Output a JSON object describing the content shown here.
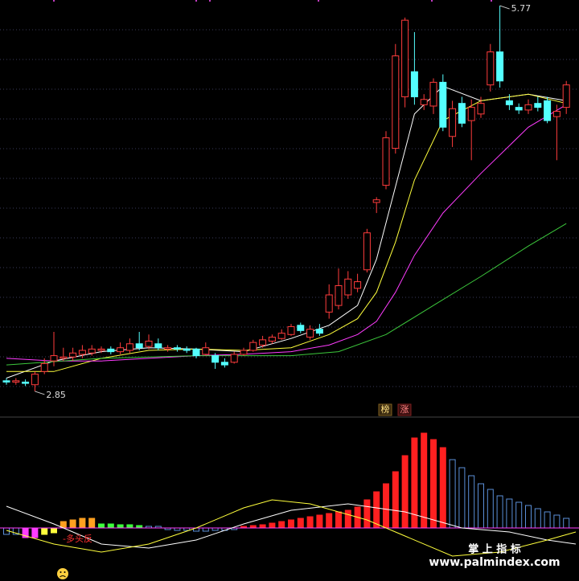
{
  "chart_data": [
    {
      "type": "candlestick",
      "up_color": "#ff3c3c",
      "down_color": "#54ffff",
      "ylim": [
        2.655,
        5.813
      ],
      "open": [
        2.93,
        2.92,
        2.92,
        2.9,
        3.0,
        3.08,
        3.1,
        3.11,
        3.13,
        3.14,
        3.16,
        3.17,
        3.15,
        3.16,
        3.21,
        3.19,
        3.21,
        3.17,
        3.18,
        3.17,
        3.17,
        3.13,
        3.12,
        3.07,
        3.07,
        3.13,
        3.16,
        3.2,
        3.23,
        3.25,
        3.28,
        3.35,
        3.26,
        3.32,
        3.45,
        3.5,
        3.58,
        3.63,
        3.77,
        4.28,
        4.41,
        4.69,
        5.08,
        5.27,
        5.02,
        5.01,
        5.19,
        4.78,
        5.03,
        4.9,
        4.95,
        5.17,
        5.42,
        5.05,
        5.0,
        4.98,
        5.03,
        5.05,
        4.93,
        5.0
      ],
      "high": [
        2.95,
        2.95,
        2.94,
        3.0,
        3.1,
        3.3,
        3.18,
        3.18,
        3.2,
        3.2,
        3.19,
        3.19,
        3.22,
        3.25,
        3.3,
        3.28,
        3.25,
        3.2,
        3.2,
        3.19,
        3.18,
        3.22,
        3.14,
        3.1,
        3.15,
        3.18,
        3.24,
        3.27,
        3.28,
        3.32,
        3.36,
        3.37,
        3.35,
        3.36,
        3.66,
        3.78,
        3.76,
        3.74,
        4.08,
        4.32,
        4.82,
        5.48,
        5.68,
        5.57,
        5.1,
        5.22,
        5.25,
        5.05,
        5.08,
        5.06,
        5.08,
        5.48,
        5.77,
        5.1,
        5.03,
        5.06,
        5.08,
        5.08,
        5.02,
        5.2
      ],
      "low": [
        2.9,
        2.9,
        2.89,
        2.85,
        2.98,
        3.04,
        3.08,
        3.08,
        3.1,
        3.12,
        3.14,
        3.13,
        3.13,
        3.14,
        3.16,
        3.17,
        3.16,
        3.15,
        3.15,
        3.14,
        3.1,
        3.12,
        3.02,
        3.03,
        3.06,
        3.12,
        3.15,
        3.18,
        3.21,
        3.24,
        3.27,
        3.29,
        3.24,
        3.27,
        3.4,
        3.47,
        3.55,
        3.6,
        3.75,
        4.2,
        4.38,
        4.65,
        5.0,
        5.02,
        4.98,
        4.95,
        4.82,
        4.7,
        4.85,
        4.6,
        4.92,
        5.12,
        5.15,
        4.98,
        4.95,
        4.95,
        4.97,
        4.88,
        4.6,
        4.95
      ],
      "close": [
        2.92,
        2.93,
        2.91,
        2.98,
        3.06,
        3.12,
        3.11,
        3.14,
        3.16,
        3.17,
        3.17,
        3.15,
        3.18,
        3.21,
        3.18,
        3.23,
        3.18,
        3.18,
        3.17,
        3.16,
        3.12,
        3.18,
        3.07,
        3.05,
        3.13,
        3.16,
        3.22,
        3.24,
        3.26,
        3.29,
        3.34,
        3.31,
        3.32,
        3.29,
        3.58,
        3.65,
        3.7,
        3.68,
        4.05,
        4.3,
        4.77,
        5.39,
        5.66,
        5.08,
        5.06,
        5.19,
        4.85,
        4.99,
        4.88,
        5.0,
        5.03,
        5.42,
        5.2,
        5.02,
        4.98,
        5.02,
        5.0,
        4.9,
        4.97,
        5.17
      ],
      "lines": [
        {
          "color": "#ffffff",
          "x": [
            0,
            5,
            10,
            15,
            20,
            25,
            30,
            34,
            37,
            39,
            41,
            43,
            46,
            50,
            55,
            59
          ],
          "values": [
            2.95,
            3.08,
            3.15,
            3.18,
            3.17,
            3.15,
            3.25,
            3.35,
            3.5,
            3.85,
            4.4,
            4.95,
            5.16,
            5.05,
            5.1,
            5.05
          ]
        },
        {
          "color": "#ffff3c",
          "x": [
            0,
            5,
            10,
            15,
            20,
            25,
            30,
            34,
            37,
            39,
            41,
            43,
            46,
            50,
            55,
            59
          ],
          "values": [
            3.0,
            3.0,
            3.1,
            3.16,
            3.17,
            3.16,
            3.18,
            3.28,
            3.4,
            3.6,
            3.98,
            4.45,
            4.9,
            5.05,
            5.1,
            5.03
          ]
        },
        {
          "color": "#ff3cff",
          "x": [
            0,
            5,
            10,
            15,
            20,
            25,
            30,
            34,
            37,
            39,
            41,
            43,
            46,
            50,
            55,
            59
          ],
          "values": [
            3.1,
            3.08,
            3.08,
            3.1,
            3.12,
            3.13,
            3.15,
            3.2,
            3.28,
            3.38,
            3.6,
            3.88,
            4.2,
            4.5,
            4.85,
            5.02
          ]
        },
        {
          "color": "#3cc83c",
          "x": [
            0,
            10,
            20,
            30,
            35,
            40,
            45,
            50,
            55,
            59
          ],
          "values": [
            3.05,
            3.1,
            3.12,
            3.12,
            3.15,
            3.28,
            3.5,
            3.72,
            3.95,
            4.12
          ]
        }
      ],
      "high_mark": 5.77,
      "low_mark": 2.85
    },
    {
      "type": "bar",
      "ylim": [
        -66,
        138
      ],
      "zero_color": "#ff3cff",
      "hollow_color": "#5b8fd8",
      "values": [
        -8,
        -8,
        -12,
        -12,
        -8,
        -6,
        8,
        10,
        12,
        12,
        5,
        5,
        4,
        4,
        3,
        2,
        2,
        -2,
        -3,
        -3,
        -4,
        -4,
        -3,
        -3,
        -2,
        2,
        3,
        4,
        6,
        8,
        10,
        12,
        14,
        16,
        18,
        20,
        22,
        26,
        35,
        45,
        55,
        70,
        90,
        112,
        118,
        110,
        100,
        85,
        75,
        65,
        55,
        48,
        40,
        36,
        32,
        28,
        24,
        20,
        16,
        12
      ],
      "colors": [
        "#5b8fd8",
        "#5b8fd8",
        "#ff3cff",
        "#ff3cff",
        "#ffff3c",
        "#ffff3c",
        "#ffa020",
        "#ffa020",
        "#ffa020",
        "#ffa020",
        "#3cff3c",
        "#3cff3c",
        "#3cff3c",
        "#3cff3c",
        "#3cff3c",
        "#5b8fd8",
        "#5b8fd8",
        "#5b8fd8",
        "#5b8fd8",
        "#5b8fd8",
        "#5b8fd8",
        "#5b8fd8",
        "#5b8fd8",
        "#5b8fd8",
        "#5b8fd8",
        "#ff2020",
        "#ff2020",
        "#ff2020",
        "#ff2020",
        "#ff2020",
        "#ff2020",
        "#ff2020",
        "#ff2020",
        "#ff2020",
        "#ff2020",
        "#ff2020",
        "#ff2020",
        "#ff2020",
        "#ff2020",
        "#ff2020",
        "#ff2020",
        "#ff2020",
        "#ff2020",
        "#ff2020",
        "#ff2020",
        "#ff2020",
        "#ff2020",
        "#5b8fd8",
        "#5b8fd8",
        "#5b8fd8",
        "#5b8fd8",
        "#5b8fd8",
        "#5b8fd8",
        "#5b8fd8",
        "#5b8fd8",
        "#5b8fd8",
        "#5b8fd8",
        "#5b8fd8",
        "#5b8fd8",
        "#5b8fd8"
      ],
      "lines": [
        {
          "color": "#ffffff",
          "x": [
            0,
            5,
            10,
            15,
            20,
            25,
            30,
            36,
            42,
            48,
            53,
            57,
            60
          ],
          "values": [
            27,
            5,
            -20,
            -25,
            -15,
            5,
            22,
            30,
            20,
            0,
            -5,
            -15,
            -20
          ]
        },
        {
          "color": "#ffff3c",
          "x": [
            0,
            5,
            10,
            15,
            20,
            25,
            28,
            32,
            38,
            42,
            47,
            52,
            57,
            60
          ],
          "values": [
            -3,
            -20,
            -30,
            -20,
            0,
            25,
            35,
            30,
            10,
            -10,
            -35,
            -30,
            -15,
            -5
          ]
        }
      ],
      "annotation": "-多头反"
    }
  ],
  "badges": [
    "榜",
    "涨"
  ],
  "footer": {
    "title": "掌 上 指 标",
    "url": "www.palmindex.com"
  }
}
